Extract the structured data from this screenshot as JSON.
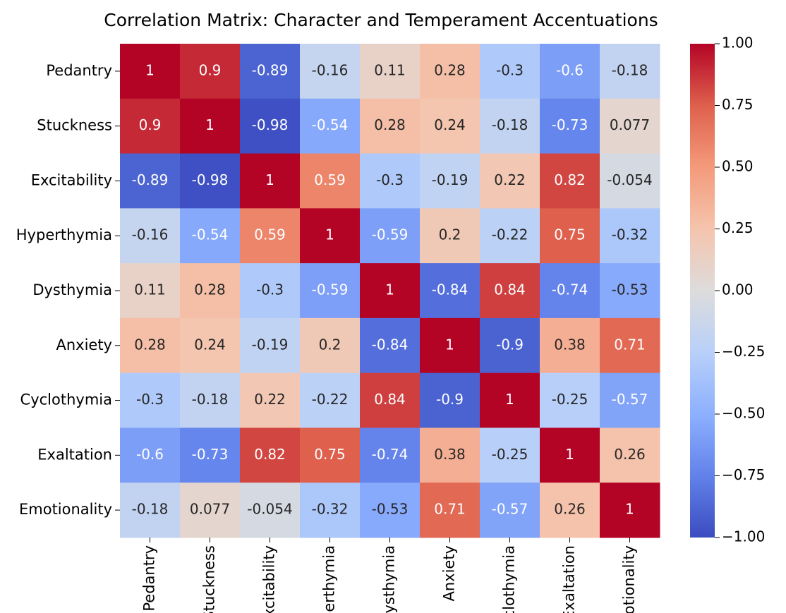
{
  "chart_data": {
    "type": "heatmap",
    "title": "Correlation Matrix: Character and Temperament Accentuations",
    "x": [
      "Pedantry",
      "Stuckness",
      "Excitability",
      "Hyperthymia",
      "Dysthymia",
      "Anxiety",
      "Cyclothymia",
      "Exaltation",
      "Emotionality"
    ],
    "y": [
      "Pedantry",
      "Stuckness",
      "Excitability",
      "Hyperthymia",
      "Dysthymia",
      "Anxiety",
      "Cyclothymia",
      "Exaltation",
      "Emotionality"
    ],
    "values": [
      [
        1,
        0.9,
        -0.89,
        -0.16,
        0.11,
        0.28,
        -0.3,
        -0.6,
        -0.18
      ],
      [
        0.9,
        1,
        -0.98,
        -0.54,
        0.28,
        0.24,
        -0.18,
        -0.73,
        0.077
      ],
      [
        -0.89,
        -0.98,
        1,
        0.59,
        -0.3,
        -0.19,
        0.22,
        0.82,
        -0.054
      ],
      [
        -0.16,
        -0.54,
        0.59,
        1,
        -0.59,
        0.2,
        -0.22,
        0.75,
        -0.32
      ],
      [
        0.11,
        0.28,
        -0.3,
        -0.59,
        1,
        -0.84,
        0.84,
        -0.74,
        -0.53
      ],
      [
        0.28,
        0.24,
        -0.19,
        0.2,
        -0.84,
        1,
        -0.9,
        0.38,
        0.71
      ],
      [
        -0.3,
        -0.18,
        0.22,
        -0.22,
        0.84,
        -0.9,
        1,
        -0.25,
        -0.57
      ],
      [
        -0.6,
        -0.73,
        0.82,
        0.75,
        -0.74,
        0.38,
        -0.25,
        1,
        0.26
      ],
      [
        -0.18,
        0.077,
        -0.054,
        -0.32,
        -0.53,
        0.71,
        -0.57,
        0.26,
        1
      ]
    ],
    "colormap": "coolwarm",
    "clim": [
      -1,
      1
    ],
    "cticks": [
      {
        "value": -1,
        "label": "−1.00"
      },
      {
        "value": -0.75,
        "label": "−0.75"
      },
      {
        "value": -0.5,
        "label": "−0.50"
      },
      {
        "value": -0.25,
        "label": "−0.25"
      },
      {
        "value": 0,
        "label": "0.00"
      },
      {
        "value": 0.25,
        "label": "0.25"
      },
      {
        "value": 0.5,
        "label": "0.50"
      },
      {
        "value": 0.75,
        "label": "0.75"
      },
      {
        "value": 1,
        "label": "1.00"
      }
    ]
  }
}
